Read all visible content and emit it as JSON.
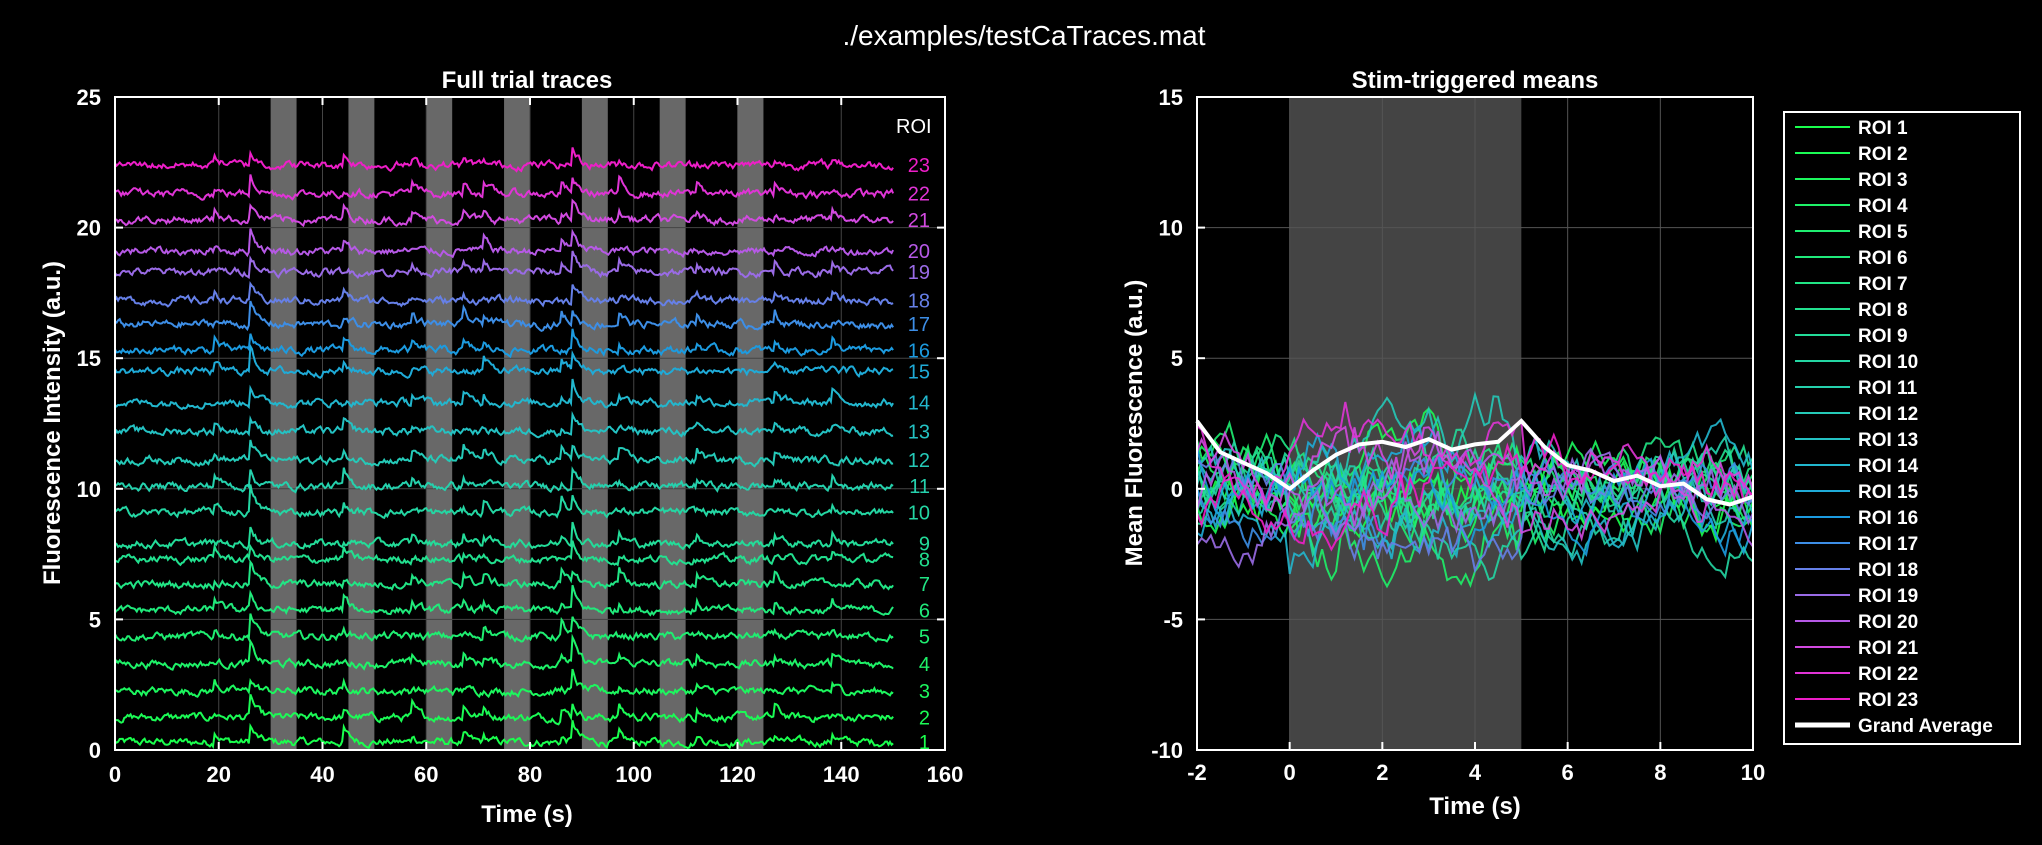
{
  "figure_title": "./examples/testCaTraces.mat",
  "chart_data": [
    {
      "type": "line",
      "title": "Full trial traces",
      "xlabel": "Time (s)",
      "ylabel": "Fluorescence Intensity (a.u.)",
      "xlim": [
        0,
        160
      ],
      "ylim": [
        0,
        25
      ],
      "xticks": [
        "0",
        "20",
        "40",
        "60",
        "80",
        "100",
        "120",
        "140",
        "160"
      ],
      "yticks": [
        "0",
        "5",
        "10",
        "15",
        "20",
        "25"
      ],
      "grid": true,
      "roi_header": "ROI",
      "stim_windows": [
        [
          30,
          35
        ],
        [
          45,
          50
        ],
        [
          60,
          65
        ],
        [
          75,
          80
        ],
        [
          90,
          95
        ],
        [
          105,
          110
        ],
        [
          120,
          125
        ]
      ],
      "trace_duration": 150,
      "series": [
        {
          "name": "1",
          "baseline": 0.3,
          "color": "#1aff4d"
        },
        {
          "name": "2",
          "baseline": 1.25,
          "color": "#1bfb55"
        },
        {
          "name": "3",
          "baseline": 2.25,
          "color": "#1cf75e"
        },
        {
          "name": "4",
          "baseline": 3.3,
          "color": "#1ef268"
        },
        {
          "name": "5",
          "baseline": 4.35,
          "color": "#1fee71"
        },
        {
          "name": "6",
          "baseline": 5.35,
          "color": "#20ea7b"
        },
        {
          "name": "7",
          "baseline": 6.35,
          "color": "#21e585"
        },
        {
          "name": "8",
          "baseline": 7.3,
          "color": "#22e08f"
        },
        {
          "name": "9",
          "baseline": 7.9,
          "color": "#23dc99"
        },
        {
          "name": "10",
          "baseline": 9.1,
          "color": "#24d6a3"
        },
        {
          "name": "11",
          "baseline": 10.1,
          "color": "#25d1ad"
        },
        {
          "name": "12",
          "baseline": 11.1,
          "color": "#25cab8"
        },
        {
          "name": "13",
          "baseline": 12.2,
          "color": "#24c2c3"
        },
        {
          "name": "14",
          "baseline": 13.3,
          "color": "#22b7ce"
        },
        {
          "name": "15",
          "baseline": 14.5,
          "color": "#1fabd8"
        },
        {
          "name": "16",
          "baseline": 15.3,
          "color": "#1c9be0"
        },
        {
          "name": "17",
          "baseline": 16.3,
          "color": "#3d8ee6"
        },
        {
          "name": "18",
          "baseline": 17.2,
          "color": "#6680e8"
        },
        {
          "name": "19",
          "baseline": 18.3,
          "color": "#9a6be6"
        },
        {
          "name": "20",
          "baseline": 19.1,
          "color": "#b659e6"
        },
        {
          "name": "21",
          "baseline": 20.3,
          "color": "#d24ae0"
        },
        {
          "name": "22",
          "baseline": 21.3,
          "color": "#e034d6"
        },
        {
          "name": "23",
          "baseline": 22.4,
          "color": "#ee1ec8"
        }
      ]
    },
    {
      "type": "line",
      "title": "Stim-triggered means",
      "xlabel": "Time (s)",
      "ylabel": "Mean Fluorescence (a.u.)",
      "xlim": [
        -2,
        10
      ],
      "ylim": [
        -10,
        15
      ],
      "xticks": [
        "-2",
        "0",
        "2",
        "4",
        "6",
        "8",
        "10"
      ],
      "yticks": [
        "-10",
        "-5",
        "0",
        "5",
        "10",
        "15"
      ],
      "grid": true,
      "stim_window": [
        0,
        5
      ],
      "legend_placement": "outside-right",
      "series_names": [
        "ROI 1",
        "ROI 2",
        "ROI 3",
        "ROI 4",
        "ROI 5",
        "ROI 6",
        "ROI 7",
        "ROI 8",
        "ROI 9",
        "ROI 10",
        "ROI 11",
        "ROI 12",
        "ROI 13",
        "ROI 14",
        "ROI 15",
        "ROI 16",
        "ROI 17",
        "ROI 18",
        "ROI 19",
        "ROI 20",
        "ROI 21",
        "ROI 22",
        "ROI 23"
      ],
      "grand_average": {
        "name": "Grand Average",
        "color": "#ffffff",
        "x": [
          -2,
          -1.5,
          -1,
          -0.5,
          0,
          0.5,
          1,
          1.5,
          2,
          2.5,
          3,
          3.5,
          4,
          4.5,
          5,
          5.5,
          6,
          6.5,
          7,
          7.5,
          8,
          8.5,
          9,
          9.5,
          10
        ],
        "y": [
          2.6,
          1.4,
          1.0,
          0.6,
          0.0,
          0.7,
          1.3,
          1.7,
          1.8,
          1.6,
          1.9,
          1.5,
          1.7,
          1.8,
          2.6,
          1.6,
          0.9,
          0.7,
          0.3,
          0.5,
          0.1,
          0.2,
          -0.4,
          -0.6,
          -0.3
        ]
      }
    }
  ]
}
